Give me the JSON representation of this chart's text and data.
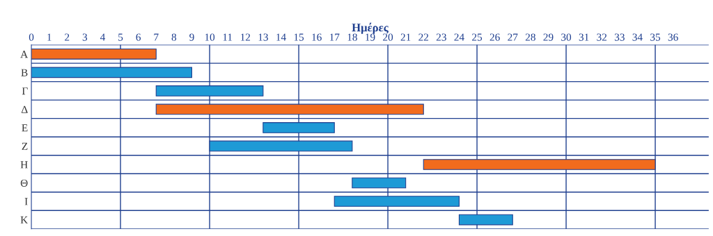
{
  "chart_data": {
    "type": "bar",
    "orientation": "horizontal",
    "xlabel": "Ημέρες",
    "categories": [
      "Α",
      "Β",
      "Γ",
      "Δ",
      "Ε",
      "Ζ",
      "Η",
      "Θ",
      "Ι",
      "Κ"
    ],
    "base": [
      0,
      0,
      7,
      7,
      13,
      10,
      22,
      18,
      17,
      24
    ],
    "values": [
      7,
      9,
      6,
      15,
      4,
      8,
      13,
      3,
      7,
      3
    ],
    "colors": [
      "#f26b1d",
      "#1e9ad6",
      "#1e9ad6",
      "#f26b1d",
      "#1e9ad6",
      "#1e9ad6",
      "#f26b1d",
      "#1e9ad6",
      "#1e9ad6",
      "#1e9ad6"
    ],
    "xlim": [
      0,
      38
    ],
    "xticks": [
      0,
      1,
      2,
      3,
      4,
      5,
      6,
      7,
      8,
      9,
      10,
      11,
      12,
      13,
      14,
      15,
      16,
      17,
      18,
      19,
      20,
      21,
      22,
      23,
      24,
      25,
      26,
      27,
      28,
      29,
      30,
      31,
      32,
      33,
      34,
      35,
      36
    ],
    "grid": "y",
    "ref_lines": [
      {
        "axis": "x",
        "value": 5,
        "color": "#1f3f8f"
      },
      {
        "axis": "x",
        "value": 10,
        "color": "#1f3f8f"
      },
      {
        "axis": "x",
        "value": 15,
        "color": "#1f3f8f"
      },
      {
        "axis": "x",
        "value": 20,
        "color": "#1f3f8f"
      },
      {
        "axis": "x",
        "value": 25,
        "color": "#1f3f8f"
      },
      {
        "axis": "x",
        "value": 30,
        "color": "#1f3f8f"
      },
      {
        "axis": "x",
        "value": 35,
        "color": "#1f3f8f"
      }
    ]
  }
}
